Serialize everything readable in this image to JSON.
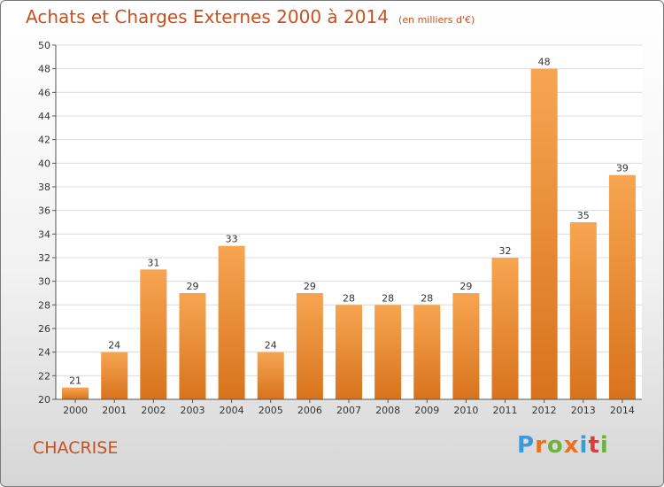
{
  "title": "Achats et Charges Externes 2000 à 2014",
  "subtitle": "(en milliers d'€)",
  "commune": "CHACRISE",
  "logo": {
    "letters": [
      "P",
      "r",
      "o",
      "x",
      "i",
      "t",
      "i"
    ],
    "colors": [
      "#3a9bd8",
      "#e8731c",
      "#6db33f",
      "#e8731c",
      "#3a9bd8",
      "#d93d3d",
      "#6db33f"
    ]
  },
  "colors": {
    "bar_top": "#f7a552",
    "bar_bottom": "#d8731c",
    "text_accent": "#c8501e"
  },
  "chart_data": {
    "type": "bar",
    "title": "Achats et Charges Externes 2000 à 2014",
    "subtitle": "(en milliers d'€)",
    "categories": [
      "2000",
      "2001",
      "2002",
      "2003",
      "2004",
      "2005",
      "2006",
      "2007",
      "2008",
      "2009",
      "2010",
      "2011",
      "2012",
      "2013",
      "2014"
    ],
    "values": [
      21,
      24,
      31,
      29,
      33,
      24,
      29,
      28,
      28,
      28,
      29,
      32,
      48,
      35,
      39
    ],
    "ylim": [
      20,
      50
    ],
    "yticks": [
      20,
      22,
      24,
      26,
      28,
      30,
      32,
      34,
      36,
      38,
      40,
      42,
      44,
      46,
      48,
      50
    ],
    "grid": true,
    "xlabel": "",
    "ylabel": ""
  }
}
